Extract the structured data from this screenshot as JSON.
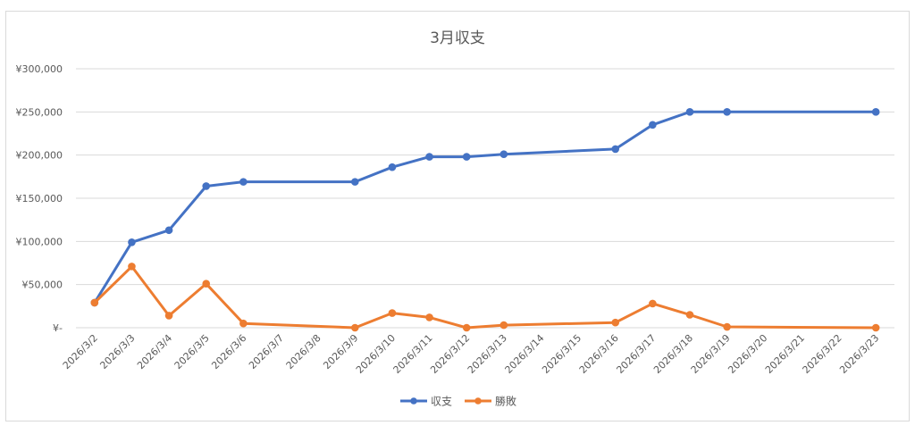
{
  "chart_data": {
    "type": "line",
    "title": "3月収支",
    "xlabel": "",
    "ylabel": "",
    "ylim": [
      0,
      300000
    ],
    "y_ticks": [
      {
        "value": 0,
        "label": "¥-"
      },
      {
        "value": 50000,
        "label": "¥50,000"
      },
      {
        "value": 100000,
        "label": "¥100,000"
      },
      {
        "value": 150000,
        "label": "¥150,000"
      },
      {
        "value": 200000,
        "label": "¥200,000"
      },
      {
        "value": 250000,
        "label": "¥250,000"
      },
      {
        "value": 300000,
        "label": "¥300,000"
      }
    ],
    "categories": [
      "2026/3/2",
      "2026/3/3",
      "2026/3/4",
      "2026/3/5",
      "2026/3/6",
      "2026/3/7",
      "2026/3/8",
      "2026/3/9",
      "2026/3/10",
      "2026/3/11",
      "2026/3/12",
      "2026/3/13",
      "2026/3/14",
      "2026/3/15",
      "2026/3/16",
      "2026/3/17",
      "2026/3/18",
      "2026/3/19",
      "2026/3/20",
      "2026/3/21",
      "2026/3/22",
      "2026/3/23"
    ],
    "grid": true,
    "legend_position": "bottom",
    "series": [
      {
        "name": "収支",
        "color": "#4472c4",
        "points": [
          [
            "2026/3/2",
            29000
          ],
          [
            "2026/3/3",
            99000
          ],
          [
            "2026/3/4",
            113000
          ],
          [
            "2026/3/5",
            164000
          ],
          [
            "2026/3/6",
            169000
          ],
          [
            "2026/3/9",
            169000
          ],
          [
            "2026/3/10",
            186000
          ],
          [
            "2026/3/11",
            198000
          ],
          [
            "2026/3/12",
            198000
          ],
          [
            "2026/3/13",
            201000
          ],
          [
            "2026/3/16",
            207000
          ],
          [
            "2026/3/17",
            235000
          ],
          [
            "2026/3/18",
            250000
          ],
          [
            "2026/3/19",
            250000
          ],
          [
            "2026/3/23",
            250000
          ]
        ]
      },
      {
        "name": "勝敗",
        "color": "#ed7d31",
        "points": [
          [
            "2026/3/2",
            29000
          ],
          [
            "2026/3/3",
            71000
          ],
          [
            "2026/3/4",
            14000
          ],
          [
            "2026/3/5",
            51000
          ],
          [
            "2026/3/6",
            5000
          ],
          [
            "2026/3/9",
            0
          ],
          [
            "2026/3/10",
            17000
          ],
          [
            "2026/3/11",
            12000
          ],
          [
            "2026/3/12",
            0
          ],
          [
            "2026/3/13",
            3000
          ],
          [
            "2026/3/16",
            6000
          ],
          [
            "2026/3/17",
            28000
          ],
          [
            "2026/3/18",
            15000
          ],
          [
            "2026/3/19",
            1000
          ],
          [
            "2026/3/23",
            0
          ]
        ]
      }
    ]
  }
}
